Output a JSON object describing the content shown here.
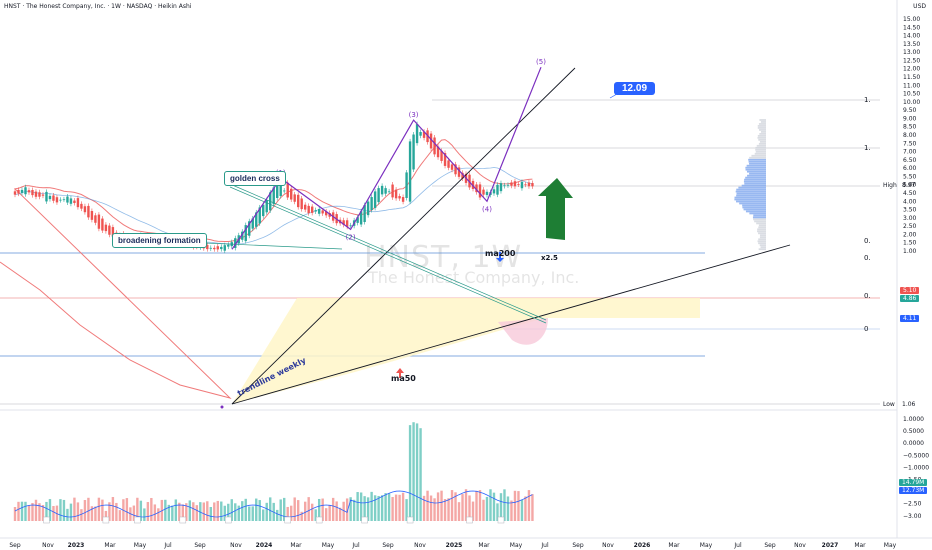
{
  "header": {
    "title": "HNST · The Honest Company, Inc. · 1W · NASDAQ · Heikin Ashi",
    "currency": "USD"
  },
  "watermark": {
    "ticker": "HNST, 1W",
    "company": "The Honest Company, Inc."
  },
  "annotations": {
    "golden_cross": "golden cross",
    "broadening_formation": "broadening formation",
    "trendline_weekly": "trendline weekly",
    "ma200": "ma200",
    "ma50": "ma50",
    "multiplier": "x2.5",
    "target_price": "12.09",
    "wave_labels": [
      "(1)",
      "(2)",
      "(3)",
      "(4)",
      "(5)"
    ]
  },
  "price_axis": {
    "ticks": [
      "15.00",
      "14.50",
      "14.00",
      "13.50",
      "13.00",
      "12.50",
      "12.00",
      "11.50",
      "11.00",
      "10.50",
      "10.00",
      "9.50",
      "9.00",
      "8.50",
      "8.00",
      "7.50",
      "7.00",
      "6.50",
      "6.00",
      "5.50",
      "5.00",
      "4.50",
      "4.00",
      "3.50",
      "3.00",
      "2.50",
      "2.00",
      "1.50",
      "1.00"
    ],
    "high_label": "High",
    "high_value": "8.97",
    "low_label": "Low",
    "low_value": "1.06",
    "badges": [
      {
        "value": "5.10",
        "color": "#ef5350"
      },
      {
        "value": "4.86",
        "color": "#26a69a"
      },
      {
        "value": "4.11",
        "color": "#2962ff"
      }
    ],
    "level_markers": [
      "1.",
      "1.",
      "0.",
      "0.",
      "0.",
      "0"
    ]
  },
  "indicator_axis": {
    "ticks": [
      "1.0000",
      "0.5000",
      "0.0000",
      "−0.5000",
      "−1.0000",
      "−1.50",
      "−2.00",
      "−2.50",
      "−3.00"
    ],
    "badges": [
      {
        "value": "14.79M",
        "color": "#26a69a"
      },
      {
        "value": "12.73M",
        "color": "#2962ff"
      }
    ]
  },
  "time_axis": {
    "labels": [
      "Sep",
      "Nov",
      "2023",
      "Mar",
      "May",
      "Jul",
      "Sep",
      "Nov",
      "2024",
      "Mar",
      "May",
      "Jul",
      "Sep",
      "Nov",
      "2025",
      "Mar",
      "May",
      "Jul",
      "Sep",
      "Nov",
      "2026",
      "Mar",
      "May",
      "Jul",
      "Sep",
      "Nov",
      "2027",
      "Mar",
      "May"
    ]
  },
  "colors": {
    "up": "#26a69a",
    "down": "#ef5350",
    "ma50": "#f07a7a",
    "ma200": "#4a90d9",
    "pattern": "#7b2fbf",
    "arrow": "#1e7e34"
  },
  "chart_data": {
    "type": "candlestick",
    "interval": "1W",
    "chart_style": "Heikin Ashi",
    "ylim": [
      0.9,
      15.4
    ],
    "wave_points": [
      {
        "label": "(1)",
        "date": "2024-02-19",
        "price": 5.4
      },
      {
        "label": "(2)",
        "date": "2024-07-08",
        "price": 2.3
      },
      {
        "label": "(3)",
        "date": "2024-11-11",
        "price": 8.9
      },
      {
        "label": "(4)",
        "date": "2025-04-07",
        "price": 4.0
      },
      {
        "label": "(5)",
        "date": "2025-06-30",
        "price": 12.09
      }
    ],
    "candles": [
      {
        "d": "2022-09-05",
        "o": 4.6,
        "c": 4.4
      },
      {
        "d": "2022-09-26",
        "o": 4.5,
        "c": 4.8
      },
      {
        "d": "2022-10-17",
        "o": 4.7,
        "c": 4.2
      },
      {
        "d": "2022-11-07",
        "o": 4.1,
        "c": 4.5
      },
      {
        "d": "2022-11-28",
        "o": 4.3,
        "c": 3.9
      },
      {
        "d": "2022-12-19",
        "o": 3.9,
        "c": 4.3
      },
      {
        "d": "2023-01-09",
        "o": 4.1,
        "c": 3.7
      },
      {
        "d": "2023-01-30",
        "o": 3.6,
        "c": 3.1
      },
      {
        "d": "2023-02-20",
        "o": 3.1,
        "c": 2.4
      },
      {
        "d": "2023-03-13",
        "o": 2.5,
        "c": 2.0
      },
      {
        "d": "2023-04-03",
        "o": 2.0,
        "c": 1.8
      },
      {
        "d": "2023-04-24",
        "o": 1.8,
        "c": 1.6
      },
      {
        "d": "2023-05-15",
        "o": 1.7,
        "c": 1.9
      },
      {
        "d": "2023-06-05",
        "o": 1.9,
        "c": 1.6
      },
      {
        "d": "2023-06-26",
        "o": 1.6,
        "c": 1.5
      },
      {
        "d": "2023-07-17",
        "o": 1.5,
        "c": 1.7
      },
      {
        "d": "2023-08-07",
        "o": 1.6,
        "c": 1.4
      },
      {
        "d": "2023-08-28",
        "o": 1.4,
        "c": 1.3
      },
      {
        "d": "2023-09-18",
        "o": 1.3,
        "c": 1.2
      },
      {
        "d": "2023-10-09",
        "o": 1.2,
        "c": 1.1
      },
      {
        "d": "2023-10-30",
        "o": 1.1,
        "c": 1.3
      },
      {
        "d": "2023-11-20",
        "o": 1.3,
        "c": 1.7
      },
      {
        "d": "2023-12-11",
        "o": 1.7,
        "c": 2.5
      },
      {
        "d": "2024-01-01",
        "o": 2.5,
        "c": 3.3
      },
      {
        "d": "2024-01-22",
        "o": 3.3,
        "c": 4.1
      },
      {
        "d": "2024-02-12",
        "o": 4.1,
        "c": 5.2
      },
      {
        "d": "2024-03-04",
        "o": 5.0,
        "c": 4.3
      },
      {
        "d": "2024-03-25",
        "o": 4.3,
        "c": 3.7
      },
      {
        "d": "2024-04-15",
        "o": 3.7,
        "c": 3.3
      },
      {
        "d": "2024-05-06",
        "o": 3.3,
        "c": 3.5
      },
      {
        "d": "2024-05-27",
        "o": 3.4,
        "c": 3.0
      },
      {
        "d": "2024-06-17",
        "o": 3.0,
        "c": 2.6
      },
      {
        "d": "2024-07-08",
        "o": 2.6,
        "c": 2.5
      },
      {
        "d": "2024-07-29",
        "o": 2.6,
        "c": 3.4
      },
      {
        "d": "2024-08-19",
        "o": 3.4,
        "c": 4.3
      },
      {
        "d": "2024-09-09",
        "o": 4.3,
        "c": 5.0
      },
      {
        "d": "2024-09-30",
        "o": 4.9,
        "c": 4.3
      },
      {
        "d": "2024-10-21",
        "o": 4.2,
        "c": 4.0
      },
      {
        "d": "2024-11-04",
        "o": 4.0,
        "c": 7.6
      },
      {
        "d": "2024-11-18",
        "o": 7.6,
        "c": 8.6
      },
      {
        "d": "2024-12-09",
        "o": 8.4,
        "c": 7.5
      },
      {
        "d": "2024-12-30",
        "o": 7.4,
        "c": 6.6
      },
      {
        "d": "2025-01-20",
        "o": 6.5,
        "c": 6.0
      },
      {
        "d": "2025-02-10",
        "o": 6.0,
        "c": 5.5
      },
      {
        "d": "2025-03-03",
        "o": 5.5,
        "c": 4.9
      },
      {
        "d": "2025-03-24",
        "o": 4.9,
        "c": 4.3
      },
      {
        "d": "2025-04-14",
        "o": 4.3,
        "c": 4.6
      },
      {
        "d": "2025-05-05",
        "o": 4.6,
        "c": 5.1
      },
      {
        "d": "2025-05-26",
        "o": 5.2,
        "c": 4.9
      },
      {
        "d": "2025-06-16",
        "o": 4.9,
        "c": 5.1
      },
      {
        "d": "2025-07-07",
        "o": 5.1,
        "c": 4.9
      }
    ]
  }
}
